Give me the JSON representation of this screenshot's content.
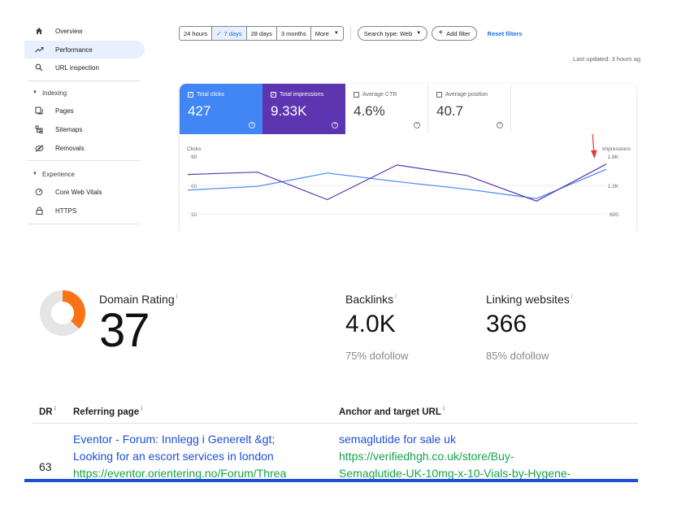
{
  "sidebar": {
    "items": [
      {
        "label": "Overview",
        "icon": "home-icon"
      },
      {
        "label": "Performance",
        "icon": "trending-up-icon",
        "active": true
      },
      {
        "label": "URL inspection",
        "icon": "search-icon"
      }
    ],
    "sections": [
      {
        "label": "Indexing",
        "items": [
          {
            "label": "Pages",
            "icon": "pages-icon"
          },
          {
            "label": "Sitemaps",
            "icon": "sitemap-icon"
          },
          {
            "label": "Removals",
            "icon": "removals-icon"
          }
        ]
      },
      {
        "label": "Experience",
        "items": [
          {
            "label": "Core Web Vitals",
            "icon": "gauge-icon"
          },
          {
            "label": "HTTPS",
            "icon": "lock-icon"
          }
        ]
      }
    ]
  },
  "filters": {
    "ranges": [
      "24 hours",
      "7 days",
      "28 days",
      "3 months",
      "More"
    ],
    "selected_check": "✓",
    "search_type": "Search type: Web",
    "add_filter": "Add filter",
    "reset": "Reset filters",
    "last_updated": "Last updated: 3 hours ag"
  },
  "metrics": {
    "clicks": {
      "label": "Total clicks",
      "value": "427"
    },
    "impressions": {
      "label": "Total impressions",
      "value": "9.33K"
    },
    "ctr": {
      "label": "Average CTR",
      "value": "4.6%"
    },
    "position": {
      "label": "Average position",
      "value": "40.7"
    },
    "help": "?",
    "checked": "✓"
  },
  "chart_data": {
    "type": "line",
    "left_axis": {
      "label": "Clicks",
      "ticks": [
        "90",
        "60",
        "30"
      ]
    },
    "right_axis": {
      "label": "Impressions",
      "ticks": [
        "1.8K",
        "1.2K",
        "600"
      ]
    },
    "x": [
      1,
      2,
      3,
      4,
      5,
      6,
      7
    ],
    "series": [
      {
        "metric": "clicks",
        "color": "#4285f4",
        "values": [
          55,
          59,
          73,
          64,
          56,
          46,
          77
        ]
      },
      {
        "metric": "impressions",
        "color": "#5e35b1",
        "values": [
          1430,
          1480,
          900,
          1630,
          1410,
          870,
          1650
        ]
      }
    ],
    "annotation": {
      "type": "arrow",
      "color": "#e53935"
    }
  },
  "ahrefs": {
    "domain_rating": {
      "label": "Domain Rating",
      "value": "37",
      "info": "i",
      "ring_fraction": 0.37,
      "ring_color": "#f97316",
      "ring_track": "#e5e5e5"
    },
    "backlinks": {
      "label": "Backlinks",
      "value": "4.0K",
      "sub": "75% dofollow",
      "info": "i"
    },
    "linking_websites": {
      "label": "Linking websites",
      "value": "366",
      "sub": "85% dofollow",
      "info": "i"
    },
    "table": {
      "headers": {
        "dr": "DR",
        "referring_page": "Referring page",
        "anchor": "Anchor and target URL",
        "info": "i"
      },
      "rows": [
        {
          "dr": "63",
          "title_line1": "Eventor - Forum: Innlegg i Generelt &gt;",
          "title_line2": "Looking for an escort services in london",
          "url": "https://eventor.orientering.no/Forum/Threa",
          "anchor": "semaglutide for sale uk",
          "target_line1": "https://verifiedhgh.co.uk/store/Buy-",
          "target_line2": "Semaglutide-UK-10mg-x-10-Vials-by-Hygene-"
        }
      ]
    }
  }
}
